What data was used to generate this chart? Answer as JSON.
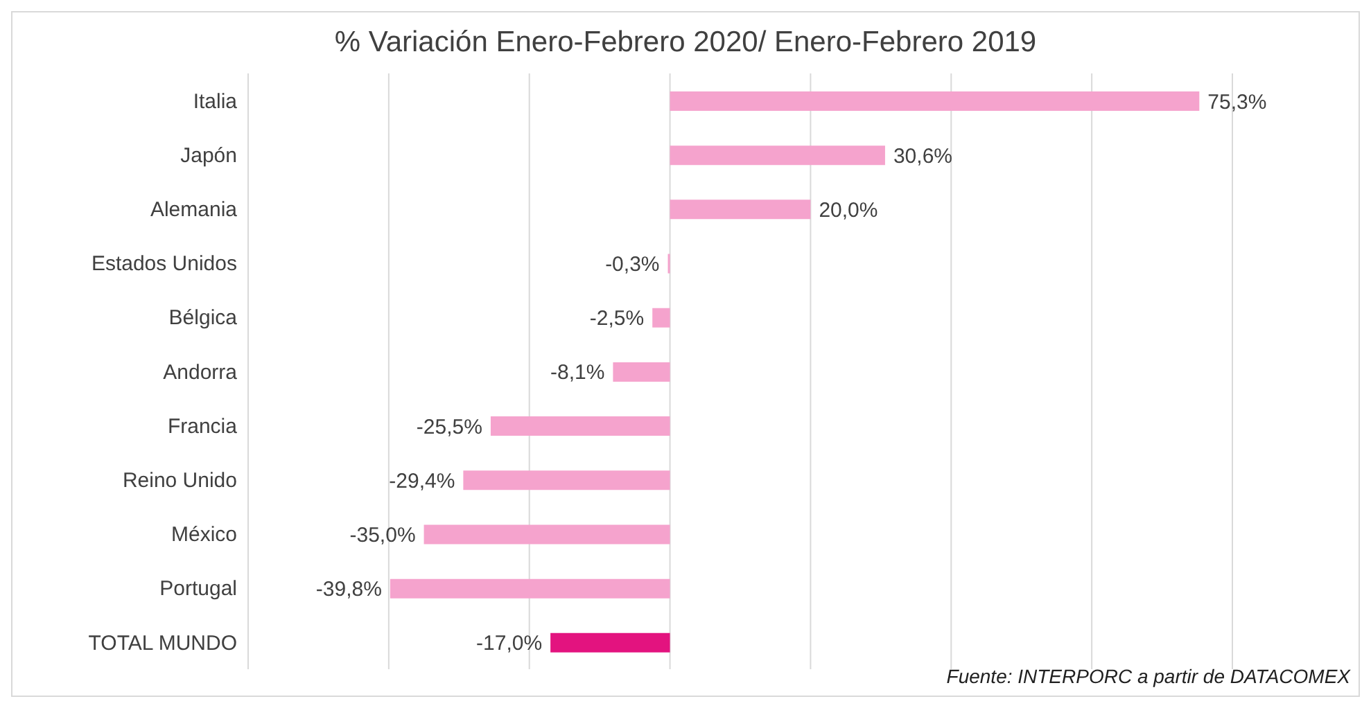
{
  "chart_data": {
    "type": "bar",
    "orientation": "horizontal",
    "title": "% Variación Enero-Febrero 2020/ Enero-Febrero 2019",
    "categories": [
      "Italia",
      "Japón",
      "Alemania",
      "Estados Unidos",
      "Bélgica",
      "Andorra",
      "Francia",
      "Reino Unido",
      "México",
      "Portugal",
      "TOTAL MUNDO"
    ],
    "values": [
      75.3,
      30.6,
      20.0,
      -0.3,
      -2.5,
      -8.1,
      -25.5,
      -29.4,
      -35.0,
      -39.8,
      -17.0
    ],
    "value_labels": [
      "75,3%",
      "30,6%",
      "20,0%",
      "-0,3%",
      "-2,5%",
      "-8,1%",
      "-25,5%",
      "-29,4%",
      "-35,0%",
      "-39,8%",
      "-17,0%"
    ],
    "colors": [
      "#f5a3cd",
      "#f5a3cd",
      "#f5a3cd",
      "#f5a3cd",
      "#f5a3cd",
      "#f5a3cd",
      "#f5a3cd",
      "#f5a3cd",
      "#f5a3cd",
      "#f5a3cd",
      "#e3137f"
    ],
    "xlim": [
      -60,
      80
    ],
    "xticks": [
      {
        "value": -60,
        "label": null
      },
      {
        "value": -40,
        "label": null
      },
      {
        "value": -20,
        "label": null
      },
      {
        "value": 0,
        "label": null
      },
      {
        "value": 20,
        "label": null
      },
      {
        "value": 40,
        "label": null
      },
      {
        "value": 60,
        "label": null
      },
      {
        "value": 80,
        "label": null
      }
    ],
    "grid": "x",
    "tick_labels": "y",
    "annotations": [
      "Fuente: INTERPORC  a partir de DATACOMEX"
    ]
  }
}
